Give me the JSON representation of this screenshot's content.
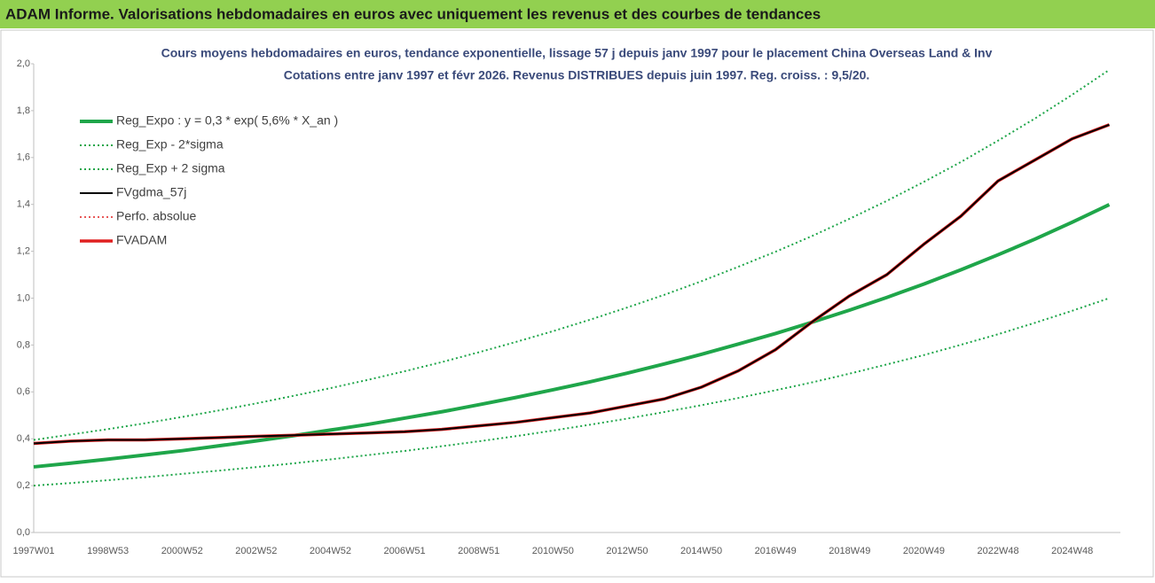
{
  "header": {
    "title": "ADAM Informe. Valorisations hebdomadaires en euros avec uniquement les revenus et des courbes de tendances"
  },
  "chart_data": {
    "type": "line",
    "title": "Cours moyens hebdomadaires en euros, tendance exponentielle, lissage 57 j depuis janv 1997 pour le placement China Overseas Land & Inv",
    "subtitle": "Cotations entre janv 1997 et févr 2026. Revenus DISTRIBUES depuis juin 1997.  Reg. croiss. : 9,5/20.",
    "categories": [
      "1997W01",
      null,
      "1998W53",
      null,
      "2000W52",
      null,
      "2002W52",
      null,
      "2004W52",
      null,
      "2006W51",
      null,
      "2008W51",
      null,
      "2010W50",
      null,
      "2012W50",
      null,
      "2014W50",
      null,
      "2016W49",
      null,
      "2018W49",
      null,
      "2020W49",
      null,
      "2022W48",
      null,
      "2024W48",
      null
    ],
    "ylim": [
      0,
      2
    ],
    "yticks": [
      {
        "value": 0,
        "label": "0,0"
      },
      {
        "value": 0.2,
        "label": "0,2"
      },
      {
        "value": 0.4,
        "label": "0,4"
      },
      {
        "value": 0.6,
        "label": "0,6"
      },
      {
        "value": 0.8,
        "label": "0,8"
      },
      {
        "value": 1,
        "label": "1,0"
      },
      {
        "value": 1.2,
        "label": "1,2"
      },
      {
        "value": 1.4,
        "label": "1,4"
      },
      {
        "value": 1.6,
        "label": "1,6"
      },
      {
        "value": 1.8,
        "label": "1,8"
      },
      {
        "value": 2,
        "label": "2,0"
      }
    ],
    "grid": false,
    "legend": "top-left",
    "series": [
      {
        "name": "Reg_Expo : y = 0,3 * exp( 5,6% *  X_an )",
        "color": "#1fa64a",
        "style": "solid",
        "width": 4,
        "values": [
          0.28,
          0.296,
          0.313,
          0.331,
          0.349,
          0.37,
          0.391,
          0.413,
          0.437,
          0.461,
          0.488,
          0.515,
          0.545,
          0.576,
          0.609,
          0.643,
          0.68,
          0.719,
          0.76,
          0.804,
          0.849,
          0.898,
          0.949,
          1.003,
          1.06,
          1.121,
          1.185,
          1.252,
          1.324,
          1.399
        ]
      },
      {
        "name": "Reg_Exp - 2*sigma",
        "color": "#1fa64a",
        "style": "dotted",
        "width": 2,
        "values": [
          0.2,
          0.211,
          0.223,
          0.236,
          0.25,
          0.264,
          0.279,
          0.295,
          0.312,
          0.33,
          0.348,
          0.368,
          0.389,
          0.411,
          0.435,
          0.46,
          0.486,
          0.514,
          0.543,
          0.574,
          0.607,
          0.641,
          0.678,
          0.717,
          0.757,
          0.801,
          0.846,
          0.895,
          0.946,
          1.0
        ]
      },
      {
        "name": "Reg_Exp + 2 sigma",
        "color": "#1fa64a",
        "style": "dotted",
        "width": 2,
        "values": [
          0.395,
          0.418,
          0.441,
          0.466,
          0.493,
          0.521,
          0.551,
          0.583,
          0.616,
          0.651,
          0.688,
          0.727,
          0.769,
          0.813,
          0.859,
          0.908,
          0.96,
          1.014,
          1.072,
          1.134,
          1.198,
          1.266,
          1.339,
          1.415,
          1.496,
          1.581,
          1.672,
          1.767,
          1.868,
          1.974
        ]
      },
      {
        "name": "FVgdma_57j",
        "color": "#000000",
        "style": "solid",
        "width": 2,
        "values": [
          0.38,
          0.39,
          0.395,
          0.395,
          0.4,
          0.405,
          0.41,
          0.415,
          0.42,
          0.425,
          0.43,
          0.44,
          0.455,
          0.47,
          0.49,
          0.51,
          0.54,
          0.57,
          0.62,
          0.69,
          0.78,
          0.9,
          1.01,
          1.1,
          1.23,
          1.35,
          1.5,
          1.59,
          1.68,
          1.74
        ]
      },
      {
        "name": "Perfo. absolue",
        "color": "#e02020",
        "style": "dotted",
        "width": 1.5,
        "values": [
          0.38,
          0.39,
          0.395,
          0.395,
          0.4,
          0.405,
          0.41,
          0.415,
          0.42,
          0.425,
          0.43,
          0.44,
          0.455,
          0.47,
          0.49,
          0.51,
          0.54,
          0.57,
          0.62,
          0.69,
          0.78,
          0.9,
          1.01,
          1.1,
          1.23,
          1.35,
          1.5,
          1.59,
          1.68,
          1.74
        ]
      },
      {
        "name": "FVADAM",
        "color": "#e02020",
        "style": "solid",
        "width": 3.5,
        "values": [
          0.38,
          0.39,
          0.395,
          0.395,
          0.4,
          0.405,
          0.41,
          0.415,
          0.42,
          0.425,
          0.43,
          0.44,
          0.455,
          0.47,
          0.49,
          0.51,
          0.54,
          0.57,
          0.62,
          0.69,
          0.78,
          0.9,
          1.01,
          1.1,
          1.23,
          1.35,
          1.5,
          1.59,
          1.68,
          1.74
        ]
      }
    ]
  }
}
